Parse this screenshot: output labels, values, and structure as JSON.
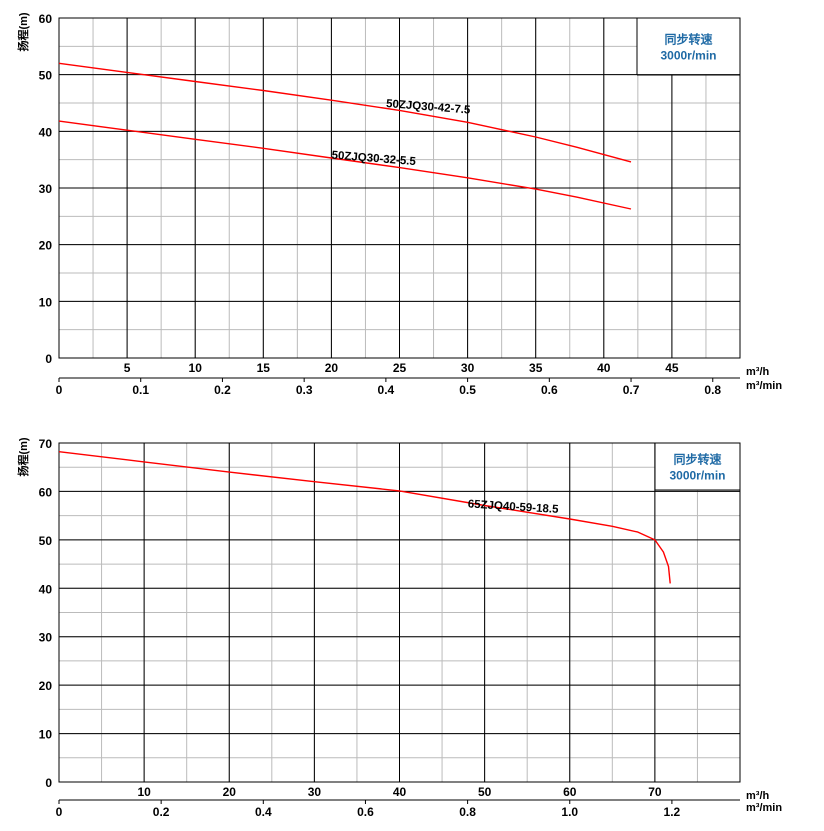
{
  "chart_data": [
    {
      "type": "line",
      "ylabel": "扬程(m)",
      "xlabel": "m³/h",
      "xlabel2": "m³/min",
      "xlim": [
        0,
        50
      ],
      "ylim": [
        0,
        60
      ],
      "yticks": [
        0,
        10,
        20,
        30,
        40,
        50,
        60
      ],
      "xticks": [
        5,
        10,
        15,
        20,
        25,
        30,
        35,
        40,
        45
      ],
      "x2ticks": [
        "0",
        "0.1",
        "0.2",
        "0.3",
        "0.4",
        "0.5",
        "0.6",
        "0.7",
        "0.8"
      ],
      "grid": true,
      "box_lines": [
        "同步转速",
        "3000r/min"
      ],
      "series": [
        {
          "name": "50ZJQ30-42-7.5",
          "x": [
            0,
            5,
            10,
            15,
            20,
            25,
            30,
            35,
            38,
            42
          ],
          "y": [
            52,
            50.4,
            48.8,
            47.2,
            45.5,
            43.7,
            41.6,
            39,
            37.2,
            34.6
          ]
        },
        {
          "name": "50ZJQ30-32-5.5",
          "x": [
            0,
            5,
            10,
            15,
            20,
            25,
            30,
            35,
            38,
            42
          ],
          "y": [
            41.8,
            40.2,
            38.6,
            37,
            35.3,
            33.6,
            31.8,
            29.8,
            28.4,
            26.3
          ]
        }
      ]
    },
    {
      "type": "line",
      "ylabel": "扬程(m)",
      "xlabel": "m³/h",
      "xlabel2": "m³/min",
      "xlim": [
        0,
        80
      ],
      "ylim": [
        0,
        70
      ],
      "yticks": [
        0,
        10,
        20,
        30,
        40,
        50,
        60,
        70
      ],
      "xticks": [
        10,
        20,
        30,
        40,
        50,
        60,
        70
      ],
      "x2ticks": [
        "0",
        "0.2",
        "0.4",
        "0.6",
        "0.8",
        "1.0",
        "1.2"
      ],
      "grid": true,
      "box_lines": [
        "同步转速",
        "3000r/min"
      ],
      "series": [
        {
          "name": "65ZJQ40-59-18.5",
          "x": [
            0,
            10,
            20,
            30,
            40,
            50,
            60,
            65,
            68,
            70,
            71,
            71.6,
            71.8
          ],
          "y": [
            68.2,
            66.1,
            64,
            62,
            60.1,
            57.1,
            54.3,
            52.8,
            51.6,
            50,
            47.5,
            44.5,
            41
          ]
        }
      ]
    }
  ],
  "colors": {
    "curve": "#ff0000",
    "box_text": "#1f6aa5",
    "grid_major": "#000000",
    "grid_minor": "#bbbbbb"
  }
}
